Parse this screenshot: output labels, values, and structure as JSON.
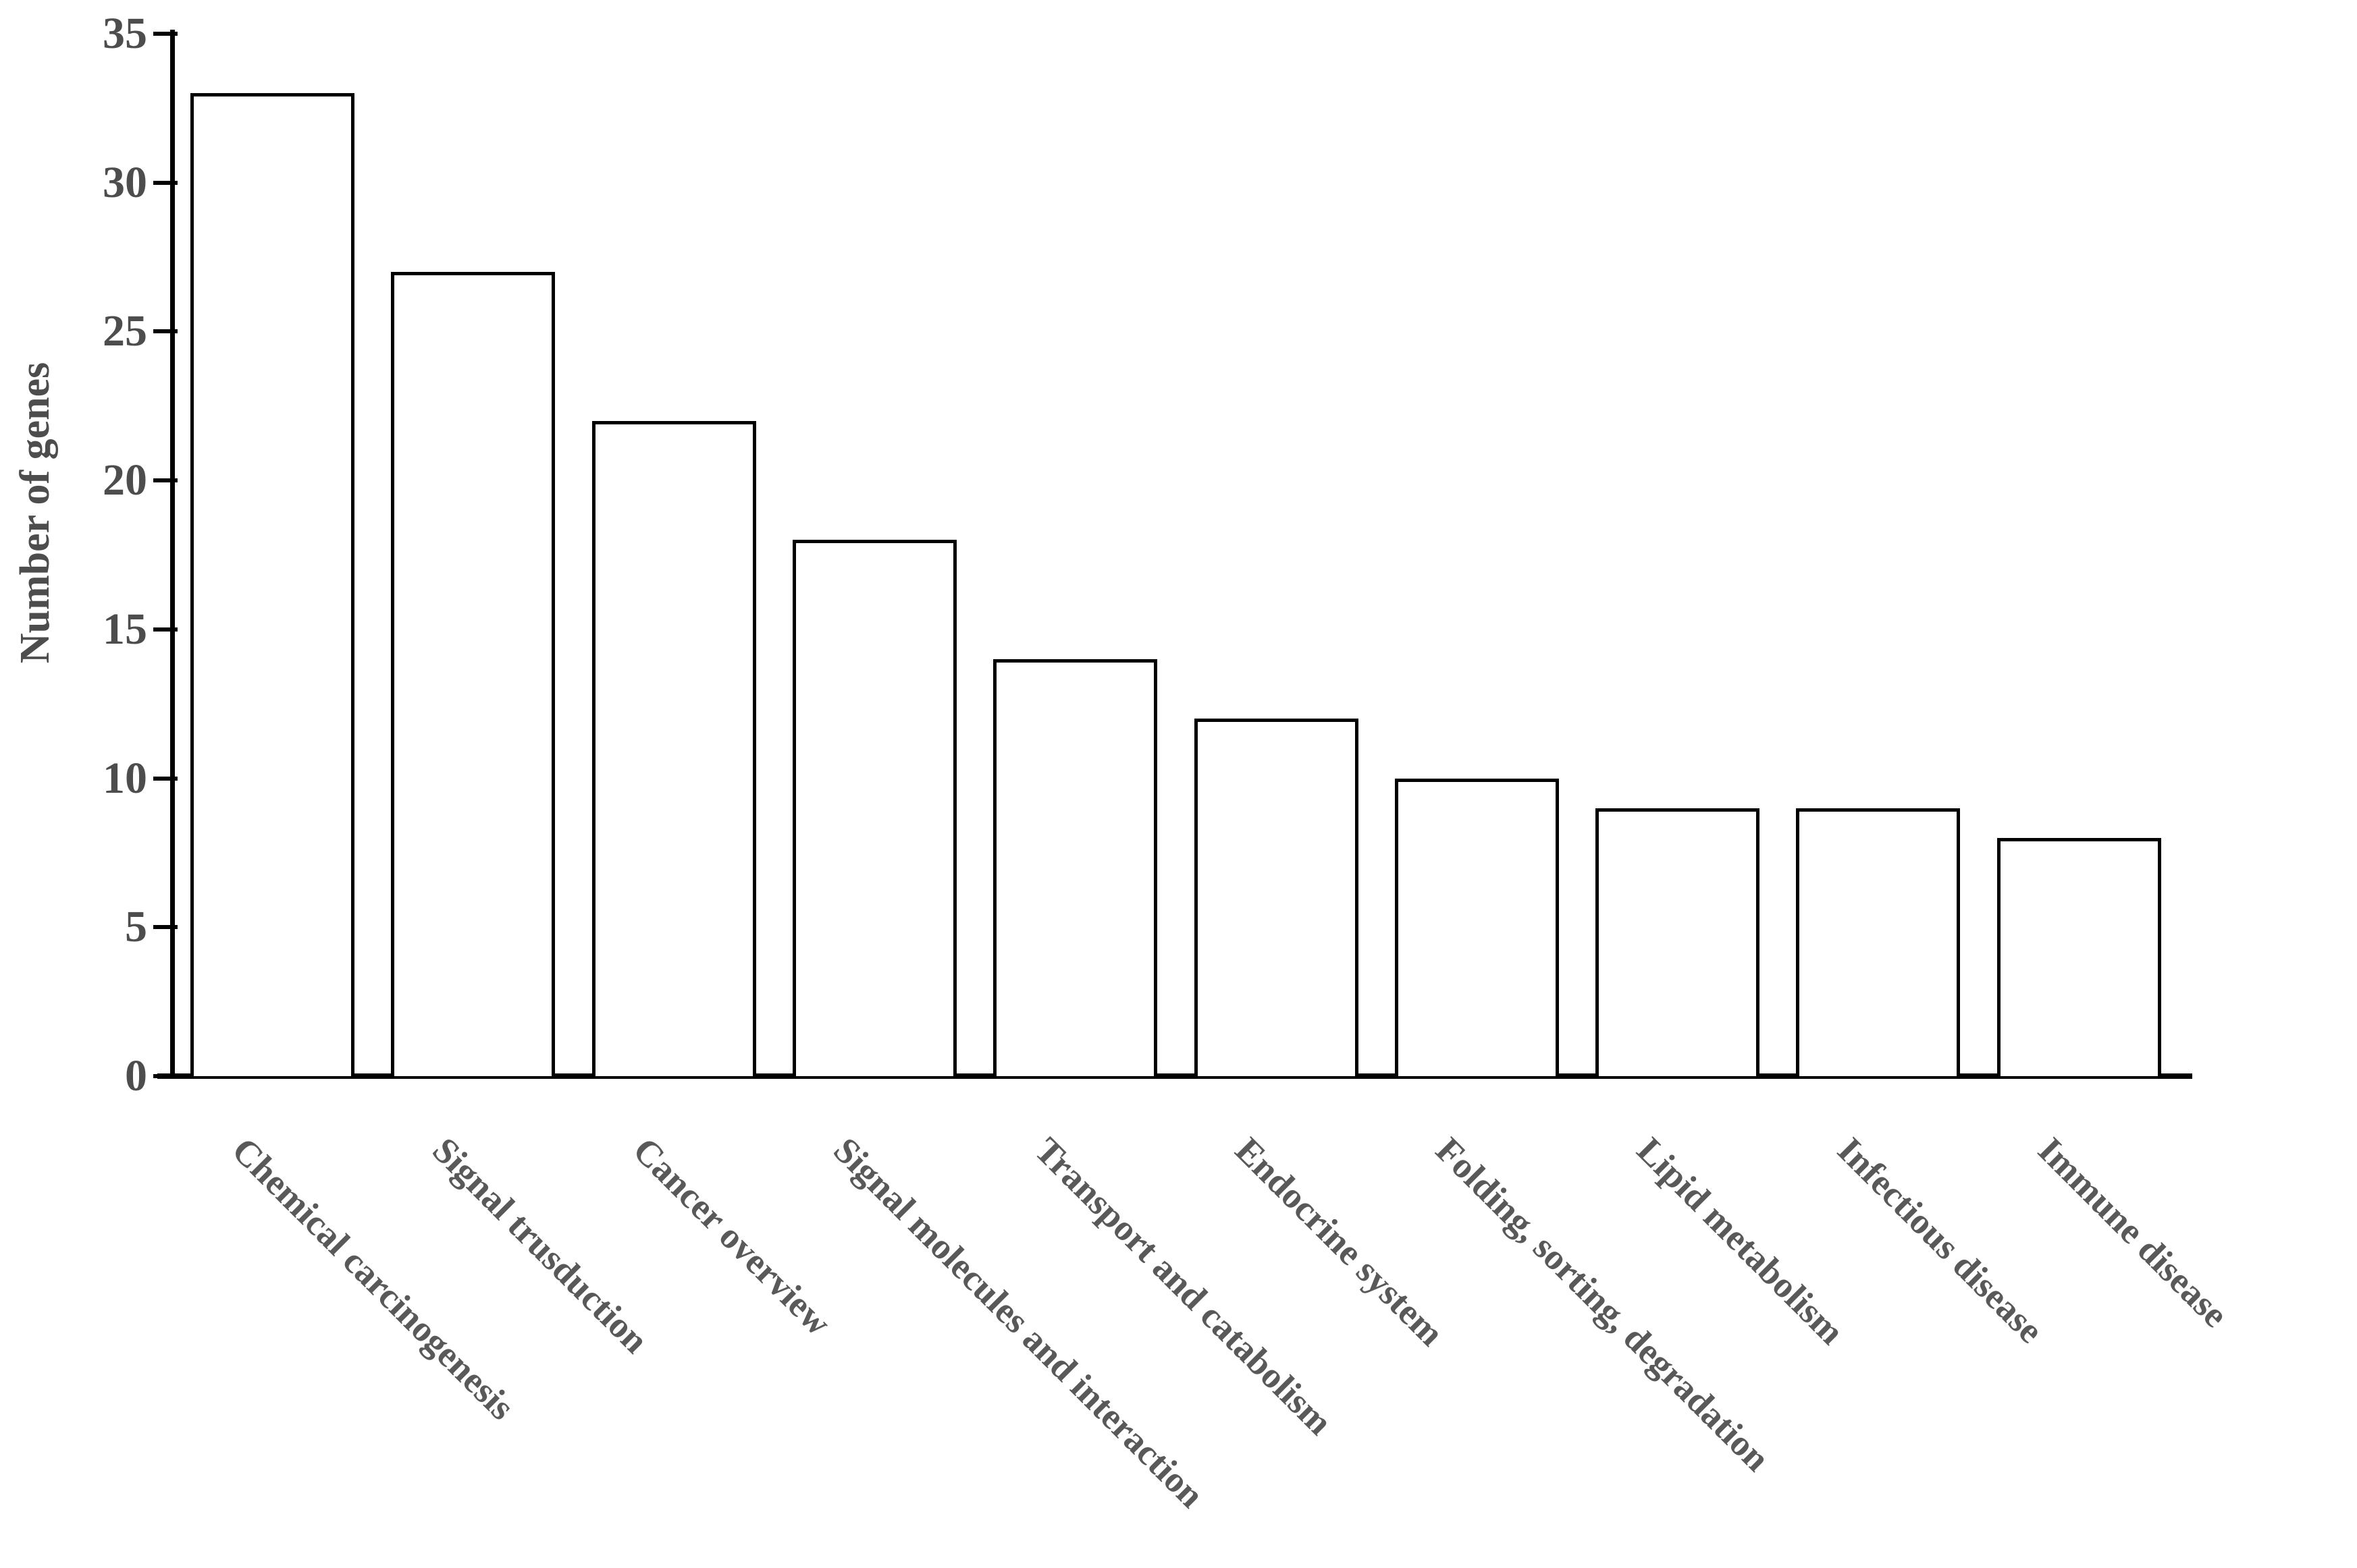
{
  "chart_data": {
    "type": "bar",
    "title": "",
    "categories": [
      "Chemical carcinogenesis",
      "Signal trusduction",
      "Cancer overview",
      "Signal molecules and interaction",
      "Transport and catabolism",
      "Endocrine system",
      "Folding, sorting, degradation",
      "Lipid metabolism",
      "Infectious disease",
      "Immune disease"
    ],
    "values": [
      33,
      27,
      22,
      18,
      14,
      12,
      10,
      9,
      9,
      8
    ],
    "xlabel": "",
    "ylabel": "Number of genes",
    "ylim": [
      0,
      35
    ],
    "yticks": [
      0,
      5,
      10,
      15,
      20,
      25,
      30,
      35
    ],
    "grid": false,
    "legend": false,
    "category_label_rotation_deg": 45,
    "bar_fill_color": "#ffffff",
    "bar_border_color": "#000000",
    "axis_color": "#000000",
    "tick_text_color": "#4d4d4d",
    "category_text_color": "#595959"
  }
}
